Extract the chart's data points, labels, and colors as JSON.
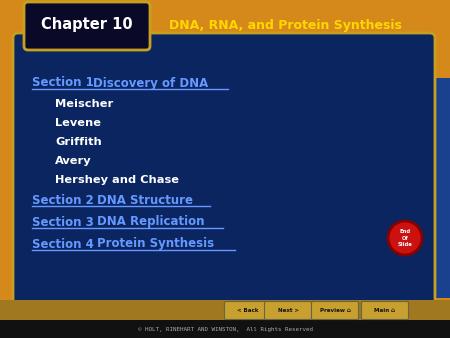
{
  "title": "DNA, RNA, and Protein Synthesis",
  "chapter": "Chapter 10",
  "bg_outer": "#D4891A",
  "bg_inner": "#0A2560",
  "header_title_color": "#FFD700",
  "chapter_text_color": "#FFFFFF",
  "section_color": "#6699FF",
  "bullet_color": "#FFFFFF",
  "copyright_text": "© HOLT, RINEHART AND WINSTON,  All Rights Reserved",
  "sections": [
    {
      "label": "Section 1",
      "title": "  Discovery of DNA"
    },
    {
      "label": "Section 2",
      "title": "  DNA Structure"
    },
    {
      "label": "Section 3",
      "title": "  DNA Replication"
    },
    {
      "label": "Section 4",
      "title": "  Protein Synthesis"
    }
  ],
  "bullets": [
    "Meischer",
    "Levene",
    "Griffith",
    "Avery",
    "Hershey and Chase"
  ],
  "nav_buttons": [
    "< Back",
    "Next >",
    "Preview",
    "Main"
  ],
  "nav_bg": "#B8922A",
  "end_slide_color": "#CC1111"
}
